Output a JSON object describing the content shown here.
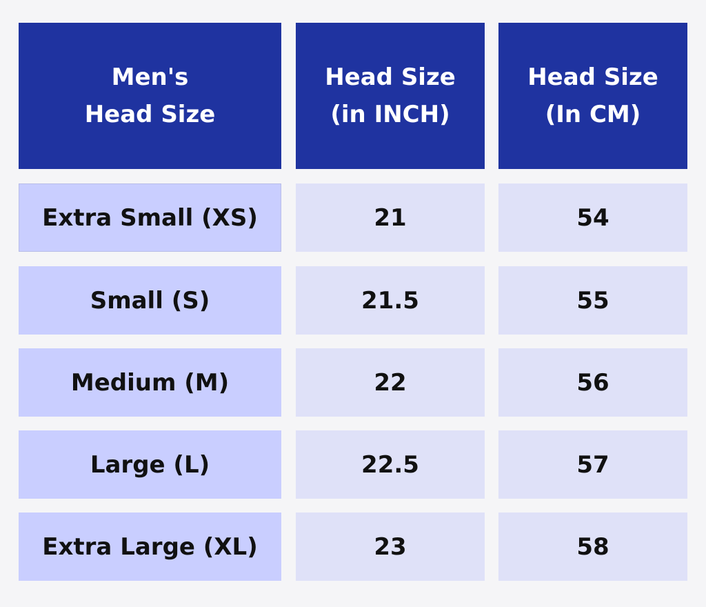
{
  "table": {
    "headers": [
      "Men's\nHead Size",
      "Head Size\n(in INCH)",
      "Head Size\n(In CM)"
    ],
    "rows": [
      {
        "size": "Extra Small (XS)",
        "inch": "21",
        "cm": "54"
      },
      {
        "size": "Small (S)",
        "inch": "21.5",
        "cm": "55"
      },
      {
        "size": "Medium (M)",
        "inch": "22",
        "cm": "56"
      },
      {
        "size": "Large (L)",
        "inch": "22.5",
        "cm": "57"
      },
      {
        "size": "Extra Large (XL)",
        "inch": "23",
        "cm": "58"
      }
    ]
  },
  "colors": {
    "header_bg": "#1f33a0",
    "label_bg": "#c9ceff",
    "value_bg": "#dfe1f8",
    "page_bg": "#f5f5f7"
  }
}
